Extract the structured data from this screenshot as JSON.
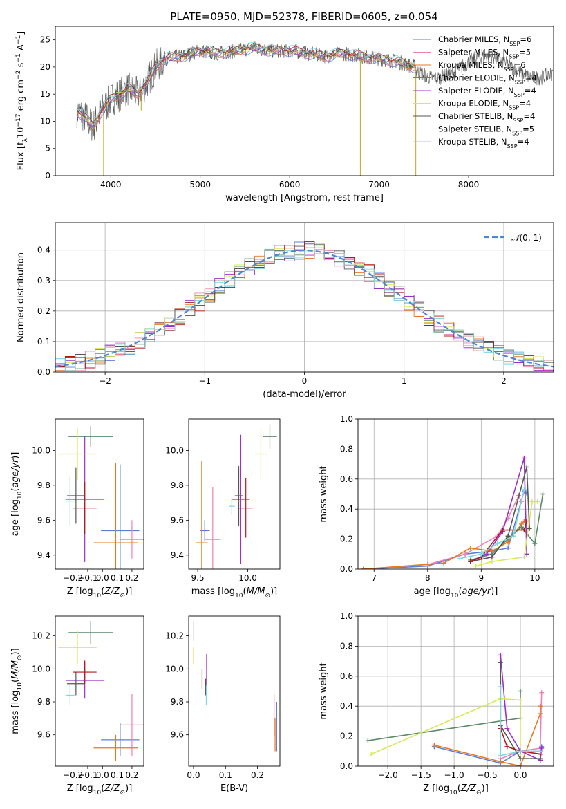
{
  "figure": {
    "title": "PLATE=0950, MJD=52378, FIBERID=0605, z=0.054"
  },
  "colors": {
    "Chabrier MILES": "#5b7fd6",
    "Salpeter MILES": "#ee82b4",
    "Kroupa MILES": "#e87722",
    "Chabrier ELODIE": "#5a8a66",
    "Salpeter ELODIE": "#9b30c8",
    "Kroupa ELODIE": "#d8e85a",
    "Chabrier STELIB": "#555555",
    "Salpeter STELIB": "#b01818",
    "Kroupa STELIB": "#7fd6e0"
  },
  "chart_data": [
    {
      "id": "spectrum",
      "type": "line",
      "xlabel": "wavelength [Angstrom, rest frame]",
      "ylabel": "Flux [f_λ 10^-17 erg cm^-2 s^-1 A^-1]",
      "xlim": [
        3380,
        8950
      ],
      "ylim": [
        0,
        27.5
      ],
      "xticks": [
        4000,
        5000,
        6000,
        7000,
        8000
      ],
      "yticks": [
        0,
        5,
        10,
        15,
        20,
        25
      ],
      "legend": [
        "Chabrier MILES, N_SSP=6",
        "Salpeter MILES, N_SSP=5",
        "Kroupa MILES, N_SSP=6",
        "Chabrier ELODIE, N_SSP=4",
        "Salpeter ELODIE, N_SSP=4",
        "Kroupa ELODIE, N_SSP=4",
        "Chabrier STELIB, N_SSP=4",
        "Salpeter STELIB, N_SSP=5",
        "Kroupa STELIB, N_SSP=4"
      ],
      "continuum": {
        "x": [
          3620,
          3700,
          3800,
          3900,
          4000,
          4100,
          4200,
          4300,
          4400,
          4500,
          4600,
          4800,
          5000,
          5200,
          5400,
          5600,
          5800,
          6000,
          6200,
          6400,
          6600,
          6800,
          7000,
          7200,
          7400,
          7410
        ],
        "y": [
          12,
          11,
          9,
          12,
          14,
          15,
          16,
          15,
          17,
          20,
          21.5,
          22,
          23,
          22.5,
          23,
          23.5,
          23,
          23,
          22.5,
          22,
          22.5,
          22,
          21.5,
          21,
          20,
          20
        ]
      },
      "features": [
        {
          "x": 3920,
          "y": 0
        },
        {
          "x": 4100,
          "y": 11.5
        },
        {
          "x": 4340,
          "y": 12
        },
        {
          "x": 6790,
          "y": 0
        },
        {
          "x": 7410,
          "y": 0
        }
      ]
    },
    {
      "id": "residuals",
      "type": "histogram",
      "xlabel": "(data-model)/error",
      "ylabel": "Normed distribution",
      "xlim": [
        -2.5,
        2.5
      ],
      "ylim": [
        0,
        0.49
      ],
      "xticks": [
        -2,
        -1,
        0,
        1,
        2
      ],
      "yticks": [
        0.0,
        0.1,
        0.2,
        0.3,
        0.4
      ],
      "legend": [
        "𝒩(0, 1)"
      ],
      "bins": [
        -2.5,
        -2.4,
        -2.3,
        -2.2,
        -2.1,
        -2.0,
        -1.9,
        -1.8,
        -1.7,
        -1.6,
        -1.5,
        -1.4,
        -1.3,
        -1.2,
        -1.1,
        -1.0,
        -0.9,
        -0.8,
        -0.7,
        -0.6,
        -0.5,
        -0.4,
        -0.3,
        -0.2,
        -0.1,
        0.0,
        0.1,
        0.2,
        0.3,
        0.4,
        0.5,
        0.6,
        0.7,
        0.8,
        0.9,
        1.0,
        1.1,
        1.2,
        1.3,
        1.4,
        1.5,
        1.6,
        1.7,
        1.8,
        1.9,
        2.0,
        2.1,
        2.2,
        2.3,
        2.4,
        2.5
      ]
    },
    {
      "id": "age-vs-Z",
      "type": "errorbar",
      "xlabel": "Z [log10(Z/Z☉)]",
      "ylabel": "age  [log10(age/yr)]",
      "xlim": [
        -0.32,
        0.28
      ],
      "ylim": [
        9.32,
        10.18
      ],
      "xticks": [
        -0.2,
        -0.1,
        0.0,
        0.1,
        0.2
      ],
      "yticks": [
        9.4,
        9.6,
        9.8,
        10.0
      ],
      "points": [
        {
          "series": "Chabrier MILES",
          "x": 0.12,
          "xerr": 0.13,
          "y": 9.54,
          "yerr": 0.38
        },
        {
          "series": "Salpeter MILES",
          "x": 0.2,
          "xerr": 0.08,
          "y": 9.49,
          "yerr": 0.11
        },
        {
          "series": "Kroupa MILES",
          "x": 0.09,
          "xerr": 0.15,
          "y": 9.47,
          "yerr": 0.46
        },
        {
          "series": "Chabrier ELODIE",
          "x": -0.08,
          "xerr": 0.15,
          "y": 10.08,
          "yerr": 0.06
        },
        {
          "series": "Salpeter ELODIE",
          "x": -0.12,
          "xerr": 0.13,
          "y": 9.72,
          "yerr": 0.36
        },
        {
          "series": "Kroupa ELODIE",
          "x": -0.17,
          "xerr": 0.13,
          "y": 9.98,
          "yerr": 0.15
        },
        {
          "series": "Chabrier STELIB",
          "x": -0.18,
          "xerr": 0.06,
          "y": 9.74,
          "yerr": 0.16
        },
        {
          "series": "Salpeter STELIB",
          "x": -0.12,
          "xerr": 0.08,
          "y": 9.67,
          "yerr": 0.15
        },
        {
          "series": "Kroupa STELIB",
          "x": -0.22,
          "xerr": 0.03,
          "y": 9.71,
          "yerr": 0.14
        }
      ]
    },
    {
      "id": "age-vs-mass",
      "type": "errorbar",
      "xlabel": "mass [log10(M/M☉)]",
      "ylabel": "",
      "xlim": [
        9.41,
        10.32
      ],
      "ylim": [
        9.32,
        10.18
      ],
      "xticks": [
        9.5,
        10.0
      ],
      "yticks": [
        9.4,
        9.6,
        9.8,
        10.0
      ],
      "points": [
        {
          "series": "Chabrier MILES",
          "x": 9.57,
          "xerr": 0.05,
          "y": 9.54,
          "yerr": 0.06
        },
        {
          "series": "Salpeter MILES",
          "x": 9.65,
          "xerr": 0.08,
          "y": 9.49,
          "yerr": 0.3
        },
        {
          "series": "Kroupa MILES",
          "x": 9.54,
          "xerr": 0.06,
          "y": 9.47,
          "yerr": 0.47
        },
        {
          "series": "Chabrier ELODIE",
          "x": 10.22,
          "xerr": 0.07,
          "y": 10.08,
          "yerr": 0.07
        },
        {
          "series": "Salpeter ELODIE",
          "x": 9.93,
          "xerr": 0.09,
          "y": 9.72,
          "yerr": 0.37
        },
        {
          "series": "Kroupa ELODIE",
          "x": 10.13,
          "xerr": 0.06,
          "y": 9.98,
          "yerr": 0.15
        },
        {
          "series": "Chabrier STELIB",
          "x": 9.91,
          "xerr": 0.04,
          "y": 9.74,
          "yerr": 0.17
        },
        {
          "series": "Salpeter STELIB",
          "x": 9.98,
          "xerr": 0.07,
          "y": 9.67,
          "yerr": 0.17
        },
        {
          "series": "Kroupa STELIB",
          "x": 9.84,
          "xerr": 0.03,
          "y": 9.68,
          "yerr": 0.05
        }
      ]
    },
    {
      "id": "mass-weight-vs-age",
      "type": "line",
      "xlabel": "age  [log10(age/yr)]",
      "ylabel": "mass weight",
      "xlim": [
        6.7,
        10.35
      ],
      "ylim": [
        0,
        1.0
      ],
      "xticks": [
        7,
        8,
        9,
        10
      ],
      "yticks": [
        0.0,
        0.2,
        0.4,
        0.6,
        0.8,
        1.0
      ],
      "series": [
        {
          "name": "Chabrier MILES",
          "x": [
            6.8,
            8.0,
            8.7,
            9.2,
            9.5,
            9.8,
            9.85
          ],
          "y": [
            0.0,
            0.02,
            0.1,
            0.12,
            0.14,
            0.52,
            0.5
          ]
        },
        {
          "name": "Salpeter MILES",
          "x": [
            6.8,
            8.0,
            8.7,
            9.3,
            9.5,
            9.7,
            9.75
          ],
          "y": [
            0.0,
            0.03,
            0.1,
            0.22,
            0.34,
            0.49,
            0.45
          ]
        },
        {
          "name": "Kroupa MILES",
          "x": [
            6.8,
            8.3,
            8.8,
            9.2,
            9.5,
            9.75,
            9.8
          ],
          "y": [
            0.0,
            0.04,
            0.14,
            0.12,
            0.18,
            0.3,
            0.32
          ]
        },
        {
          "name": "Chabrier ELODIE",
          "x": [
            8.8,
            9.2,
            9.5,
            9.75,
            10.0,
            10.15
          ],
          "y": [
            0.06,
            0.1,
            0.2,
            0.28,
            0.17,
            0.5
          ]
        },
        {
          "name": "Salpeter ELODIE",
          "x": [
            8.8,
            9.1,
            9.4,
            9.8,
            9.85
          ],
          "y": [
            0.05,
            0.1,
            0.25,
            0.74,
            0.1
          ]
        },
        {
          "name": "Kroupa ELODIE",
          "x": [
            8.9,
            9.2,
            9.8,
            9.95,
            10.05
          ],
          "y": [
            0.02,
            0.05,
            0.08,
            0.45,
            0.45
          ]
        },
        {
          "name": "Chabrier STELIB",
          "x": [
            8.8,
            9.2,
            9.5,
            9.85,
            9.9
          ],
          "y": [
            0.05,
            0.08,
            0.22,
            0.68,
            0.27
          ]
        },
        {
          "name": "Salpeter STELIB",
          "x": [
            8.8,
            9.0,
            9.4,
            9.8,
            9.85
          ],
          "y": [
            0.05,
            0.08,
            0.26,
            0.26,
            0.32
          ]
        },
        {
          "name": "Kroupa STELIB",
          "x": [
            8.6,
            9.0,
            9.3,
            9.6,
            9.8
          ],
          "y": [
            0.07,
            0.1,
            0.17,
            0.22,
            0.53
          ]
        }
      ]
    },
    {
      "id": "mass-vs-Z",
      "type": "errorbar",
      "xlabel": "Z [log10(Z/Z☉)]",
      "ylabel": "mass [log10(M/M☉)]",
      "xlim": [
        -0.32,
        0.28
      ],
      "ylim": [
        9.41,
        10.32
      ],
      "xticks": [
        -0.2,
        -0.1,
        0.0,
        0.1,
        0.2
      ],
      "yticks": [
        9.6,
        9.8,
        10.0,
        10.2
      ],
      "points": [
        {
          "series": "Chabrier MILES",
          "x": 0.12,
          "xerr": 0.13,
          "y": 9.57,
          "yerr": 0.1
        },
        {
          "series": "Salpeter MILES",
          "x": 0.2,
          "xerr": 0.08,
          "y": 9.66,
          "yerr": 0.19
        },
        {
          "series": "Kroupa MILES",
          "x": 0.09,
          "xerr": 0.15,
          "y": 9.52,
          "yerr": 0.08
        },
        {
          "series": "Chabrier ELODIE",
          "x": -0.08,
          "xerr": 0.15,
          "y": 10.22,
          "yerr": 0.07
        },
        {
          "series": "Salpeter ELODIE",
          "x": -0.12,
          "xerr": 0.13,
          "y": 9.93,
          "yerr": 0.11
        },
        {
          "series": "Kroupa ELODIE",
          "x": -0.17,
          "xerr": 0.13,
          "y": 10.13,
          "yerr": 0.1
        },
        {
          "series": "Chabrier STELIB",
          "x": -0.18,
          "xerr": 0.06,
          "y": 9.91,
          "yerr": 0.07
        },
        {
          "series": "Salpeter STELIB",
          "x": -0.12,
          "xerr": 0.08,
          "y": 9.98,
          "yerr": 0.07
        },
        {
          "series": "Kroupa STELIB",
          "x": -0.22,
          "xerr": 0.03,
          "y": 9.84,
          "yerr": 0.06
        }
      ]
    },
    {
      "id": "mass-vs-ebv",
      "type": "errorbar",
      "xlabel": "E(B-V)",
      "ylabel": "",
      "xlim": [
        -0.015,
        0.27
      ],
      "ylim": [
        9.41,
        10.32
      ],
      "xticks": [
        0.0,
        0.1,
        0.2
      ],
      "yticks": [
        9.6,
        9.8,
        10.0,
        10.2
      ],
      "points": [
        {
          "series": "Chabrier MILES",
          "x": 0.26,
          "y": 9.65,
          "yerr": 0.15
        },
        {
          "series": "Salpeter MILES",
          "x": 0.252,
          "y": 9.72,
          "yerr": 0.13
        },
        {
          "series": "Kroupa MILES",
          "x": 0.255,
          "y": 9.6,
          "yerr": 0.1
        },
        {
          "series": "Chabrier ELODIE",
          "x": 0.001,
          "y": 10.23,
          "yerr": 0.06
        },
        {
          "series": "Salpeter ELODIE",
          "x": 0.041,
          "y": 9.94,
          "yerr": 0.15
        },
        {
          "series": "Kroupa ELODIE",
          "x": 0.0,
          "y": 10.08,
          "yerr": 0.05
        },
        {
          "series": "Chabrier STELIB",
          "x": 0.038,
          "y": 9.89,
          "yerr": 0.05
        },
        {
          "series": "Salpeter STELIB",
          "x": 0.027,
          "y": 9.94,
          "yerr": 0.06
        },
        {
          "series": "Kroupa STELIB",
          "x": 0.04,
          "y": 9.84,
          "yerr": 0.06
        }
      ]
    },
    {
      "id": "mass-weight-vs-Z",
      "type": "line",
      "xlabel": "Z [log10(Z/Z☉)]",
      "ylabel": "mass weight",
      "xlim": [
        -2.45,
        0.5
      ],
      "ylim": [
        0,
        1.0
      ],
      "xticks": [
        -2.0,
        -1.5,
        -1.0,
        -0.5,
        0.0
      ],
      "yticks": [
        0.0,
        0.2,
        0.4,
        0.6,
        0.8,
        1.0
      ],
      "series": [
        {
          "name": "Chabrier MILES",
          "x": [
            -1.3,
            -0.3,
            0.0,
            0.3,
            0.32
          ],
          "y": [
            0.13,
            0.02,
            0.1,
            0.1,
            0.13
          ]
        },
        {
          "name": "Salpeter MILES",
          "x": [
            -0.3,
            0.0,
            0.3,
            0.32
          ],
          "y": [
            0.05,
            0.1,
            0.12,
            0.49
          ]
        },
        {
          "name": "Kroupa MILES",
          "x": [
            -1.3,
            -0.3,
            0.0,
            0.3,
            0.3
          ],
          "y": [
            0.14,
            0.03,
            0.0,
            0.35,
            0.4
          ]
        },
        {
          "name": "Chabrier ELODIE",
          "x": [
            -2.3,
            0.0,
            0.0
          ],
          "y": [
            0.17,
            0.32,
            0.5
          ]
        },
        {
          "name": "Salpeter ELODIE",
          "x": [
            -0.3,
            -0.2,
            0.0,
            0.3,
            0.32
          ],
          "y": [
            0.74,
            0.25,
            0.1,
            0.04,
            0.12
          ]
        },
        {
          "name": "Kroupa ELODIE",
          "x": [
            -2.25,
            -0.3,
            0.0,
            0.0
          ],
          "y": [
            0.08,
            0.45,
            0.44,
            0.08
          ]
        },
        {
          "name": "Chabrier STELIB",
          "x": [
            -0.3,
            -0.3,
            0.0,
            0.3
          ],
          "y": [
            0.69,
            0.27,
            0.05,
            0.05
          ]
        },
        {
          "name": "Salpeter STELIB",
          "x": [
            -0.3,
            -0.2,
            0.0,
            0.3
          ],
          "y": [
            0.25,
            0.13,
            0.1,
            0.08
          ]
        },
        {
          "name": "Kroupa STELIB",
          "x": [
            -0.3,
            -0.3,
            0.0,
            0.3
          ],
          "y": [
            0.53,
            0.07,
            0.1,
            0.1
          ]
        }
      ]
    }
  ]
}
